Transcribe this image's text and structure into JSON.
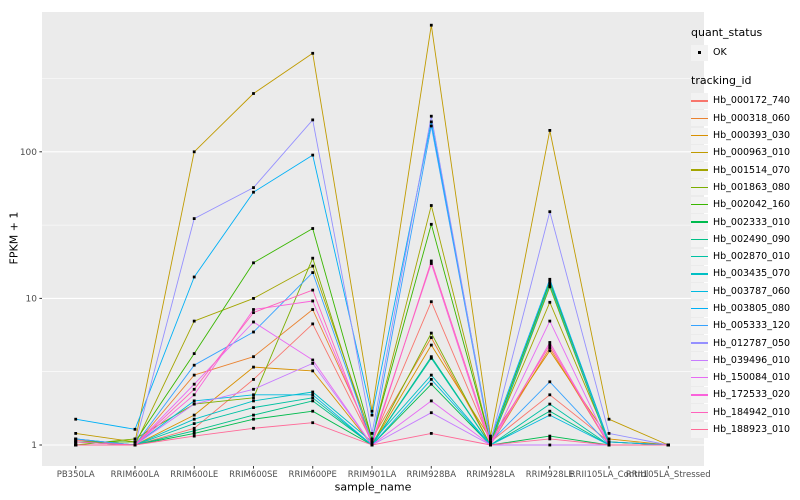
{
  "figure": {
    "xlabel": "sample_name",
    "ylabel": "FPKM + 1"
  },
  "legend": {
    "quant_status": {
      "title": "quant_status",
      "items": [
        {
          "label": "OK"
        }
      ]
    },
    "tracking_id": {
      "title": "tracking_id"
    }
  },
  "chart_data": {
    "type": "line",
    "title": "",
    "xlabel": "sample_name",
    "ylabel": "FPKM + 1",
    "y_scale": "log10",
    "y_ticks": [
      1,
      10,
      100
    ],
    "y_minor_ticks": [
      3.162,
      31.62,
      316.2
    ],
    "ylim": [
      0.72,
      930
    ],
    "grid": true,
    "legend_position": "right",
    "panel_background": "#EBEBEB",
    "grid_color": "#FFFFFF",
    "tick_label_color": "#4D4D4D",
    "point_color": "#000000",
    "point_shape": "square",
    "categories": [
      "PB350LA",
      "RRIM600LA",
      "RRIM600LE",
      "RRIM600SE",
      "RRIM600PE",
      "RRIM901LA",
      "RRIM928BA",
      "RRIM928LA",
      "RRIM928LE",
      "RRII105LA_Control",
      "RRII105LA_Stressed"
    ],
    "series": [
      {
        "name": "Hb_000172_740",
        "color": "#F8766D",
        "values": [
          1.08,
          1.0,
          1.3,
          2.8,
          6.7,
          1.05,
          9.5,
          1.05,
          2.2,
          1.05,
          1.0
        ]
      },
      {
        "name": "Hb_000318_060",
        "color": "#EA8331",
        "values": [
          1.0,
          1.0,
          3.0,
          4.0,
          8.4,
          1.1,
          5.4,
          1.0,
          4.6,
          1.0,
          1.0
        ]
      },
      {
        "name": "Hb_000393_030",
        "color": "#D89000",
        "values": [
          1.1,
          1.0,
          1.6,
          3.4,
          3.2,
          1.0,
          4.8,
          1.1,
          4.4,
          1.1,
          1.0
        ]
      },
      {
        "name": "Hb_000963_010",
        "color": "#C09B00",
        "values": [
          1.2,
          1.05,
          100,
          250,
          470,
          1.7,
          730,
          1.15,
          140,
          1.5,
          1.0
        ]
      },
      {
        "name": "Hb_001514_070",
        "color": "#A3A500",
        "values": [
          1.05,
          1.0,
          7.0,
          10,
          16.6,
          1.1,
          43,
          1.05,
          9.4,
          1.05,
          1.0
        ]
      },
      {
        "name": "Hb_001863_080",
        "color": "#7CAE00",
        "values": [
          1.0,
          1.1,
          1.9,
          2.1,
          18.8,
          1.0,
          5.8,
          1.0,
          12,
          1.0,
          1.0
        ]
      },
      {
        "name": "Hb_002042_160",
        "color": "#39B600",
        "values": [
          1.05,
          1.05,
          4.2,
          17.5,
          30,
          1.1,
          32,
          1.05,
          13,
          1.05,
          1.0
        ]
      },
      {
        "name": "Hb_002333_010",
        "color": "#00BB4E",
        "values": [
          1.0,
          1.0,
          1.2,
          1.5,
          1.7,
          1.0,
          2.6,
          1.0,
          1.15,
          1.0,
          1.0
        ]
      },
      {
        "name": "Hb_002490_090",
        "color": "#00C087",
        "values": [
          1.0,
          1.0,
          1.25,
          1.6,
          2.0,
          1.0,
          4.0,
          1.0,
          1.7,
          1.0,
          1.0
        ]
      },
      {
        "name": "Hb_002870_010",
        "color": "#00C1A3",
        "values": [
          1.05,
          1.0,
          1.4,
          1.8,
          2.1,
          1.0,
          3.9,
          1.0,
          1.9,
          1.0,
          1.0
        ]
      },
      {
        "name": "Hb_003435_070",
        "color": "#00BFC4",
        "values": [
          1.0,
          1.0,
          1.5,
          2.0,
          2.3,
          1.05,
          3.0,
          1.0,
          12.5,
          1.0,
          1.0
        ]
      },
      {
        "name": "Hb_003787_060",
        "color": "#00BAE0",
        "values": [
          1.1,
          1.0,
          2.0,
          2.2,
          2.2,
          1.0,
          2.8,
          1.0,
          1.6,
          1.0,
          1.0
        ]
      },
      {
        "name": "Hb_003805_080",
        "color": "#00B0F6",
        "values": [
          1.5,
          1.28,
          14,
          53,
          95,
          1.6,
          160,
          1.1,
          13.5,
          1.05,
          1.0
        ]
      },
      {
        "name": "Hb_005333_120",
        "color": "#35A2FF",
        "values": [
          1.1,
          1.0,
          3.5,
          5.9,
          15,
          1.05,
          150,
          1.05,
          2.7,
          1.0,
          1.0
        ]
      },
      {
        "name": "Hb_012787_050",
        "color": "#9590FF",
        "values": [
          1.0,
          1.0,
          35,
          57,
          165,
          1.2,
          175,
          1.05,
          39,
          1.2,
          1.0
        ]
      },
      {
        "name": "Hb_039496_010",
        "color": "#C77CFF",
        "values": [
          1.0,
          1.0,
          1.9,
          2.4,
          3.6,
          1.0,
          1.66,
          1.0,
          1.0,
          1.0,
          1.0
        ]
      },
      {
        "name": "Hb_150084_010",
        "color": "#E76BF3",
        "values": [
          1.0,
          1.0,
          2.6,
          6.9,
          3.8,
          1.0,
          2.0,
          1.0,
          7.0,
          1.0,
          1.0
        ]
      },
      {
        "name": "Hb_172533_020",
        "color": "#FA62DB",
        "values": [
          1.0,
          1.0,
          2.2,
          8.4,
          9.6,
          1.05,
          17.3,
          1.0,
          5.0,
          1.0,
          1.0
        ]
      },
      {
        "name": "Hb_184942_010",
        "color": "#FF62BC",
        "values": [
          1.05,
          1.0,
          2.4,
          8.0,
          11.4,
          1.0,
          18,
          1.05,
          4.8,
          1.0,
          1.0
        ]
      },
      {
        "name": "Hb_188923_010",
        "color": "#FF6A98",
        "values": [
          1.0,
          1.0,
          1.15,
          1.3,
          1.42,
          1.0,
          1.2,
          1.0,
          1.1,
          1.0,
          1.0
        ]
      }
    ]
  }
}
